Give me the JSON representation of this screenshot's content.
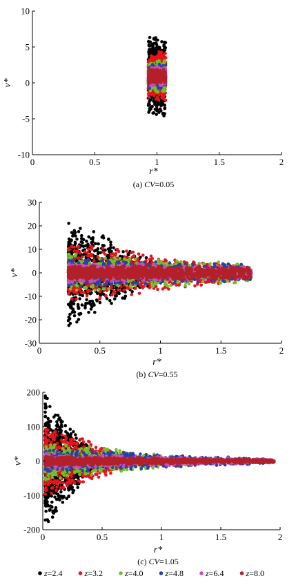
{
  "chart_data": [
    {
      "type": "scatter",
      "caption_prefix": "(a) ",
      "caption_cv": "CV",
      "caption_value": "=0.05",
      "xlabel": "r*",
      "ylabel": "v*",
      "xlim": [
        0,
        2
      ],
      "ylim": [
        -10,
        10
      ],
      "xticks": [
        0,
        0.5,
        1,
        1.5,
        2
      ],
      "xtick_labels": [
        "0",
        "0.5",
        "1",
        "1.5",
        "2"
      ],
      "yticks": [
        -10,
        -5,
        0,
        5,
        10
      ],
      "ytick_labels": [
        "-10",
        "-5",
        "0",
        "5",
        "10"
      ],
      "grid": false,
      "series": [
        {
          "name": "z=2.4",
          "color": "#000000",
          "x_range": [
            0.93,
            1.07
          ],
          "x_range_note": "",
          "spread_start": 5.5,
          "spread_end": 5.5,
          "count": 650
        },
        {
          "name": "z=3.2",
          "color": "#e8141a",
          "x_range": [
            0.93,
            1.07
          ],
          "spread_start": 3.5,
          "spread_end": 3.5,
          "count": 450
        },
        {
          "name": "z=4.0",
          "color": "#6ec12c",
          "x_range": [
            0.93,
            1.07
          ],
          "spread_start": 2.2,
          "spread_end": 2.2,
          "count": 350
        },
        {
          "name": "z=4.8",
          "color": "#2b3fa6",
          "x_range": [
            0.93,
            1.07
          ],
          "spread_start": 1.7,
          "spread_end": 1.7,
          "count": 300
        },
        {
          "name": "z=6.4",
          "color": "#c850b4",
          "x_range": [
            0.93,
            1.07
          ],
          "spread_start": 1.3,
          "spread_end": 1.3,
          "count": 300
        },
        {
          "name": "z=8.0",
          "color": "#b3202a",
          "x_range": [
            0.93,
            1.07
          ],
          "spread_start": 1.0,
          "spread_end": 1.0,
          "count": 350
        }
      ]
    },
    {
      "type": "scatter",
      "caption_prefix": "(b) ",
      "caption_cv": "CV",
      "caption_value": "=0.55",
      "xlabel": "r*",
      "ylabel": "v*",
      "xlim": [
        0,
        2
      ],
      "ylim": [
        -30,
        30
      ],
      "xticks": [
        0,
        0.5,
        1,
        1.5,
        2
      ],
      "xtick_labels": [
        "0",
        "0.5",
        "1",
        "1.5",
        "2"
      ],
      "yticks": [
        -30,
        -20,
        -10,
        0,
        10,
        20,
        30
      ],
      "ytick_labels": [
        "-30",
        "-20",
        "-10",
        "0",
        "10",
        "20",
        "30"
      ],
      "grid": false,
      "series": [
        {
          "name": "z=2.4",
          "color": "#000000",
          "x_range": [
            0.24,
            0.95
          ],
          "spread_start": 23,
          "spread_end": 5,
          "count": 900
        },
        {
          "name": "z=3.2",
          "color": "#e8141a",
          "x_range": [
            0.24,
            1.6
          ],
          "spread_start": 13,
          "spread_end": 4,
          "count": 900
        },
        {
          "name": "z=4.0",
          "color": "#6ec12c",
          "x_range": [
            0.24,
            1.75
          ],
          "spread_start": 8,
          "spread_end": 4,
          "count": 800
        },
        {
          "name": "z=4.8",
          "color": "#2b3fa6",
          "x_range": [
            0.24,
            1.75
          ],
          "spread_start": 6,
          "spread_end": 3.5,
          "count": 800
        },
        {
          "name": "z=6.4",
          "color": "#c850b4",
          "x_range": [
            0.24,
            1.75
          ],
          "spread_start": 4.2,
          "spread_end": 3,
          "count": 800
        },
        {
          "name": "z=8.0",
          "color": "#b3202a",
          "x_range": [
            0.24,
            1.75
          ],
          "spread_start": 3,
          "spread_end": 3,
          "count": 1100
        }
      ]
    },
    {
      "type": "scatter",
      "caption_prefix": "(c) ",
      "caption_cv": "CV",
      "caption_value": "=1.05",
      "xlabel": "r*",
      "ylabel": "v*",
      "xlim": [
        0,
        2
      ],
      "ylim": [
        -200,
        200
      ],
      "xticks": [
        0,
        0.5,
        1,
        1.5,
        2
      ],
      "xtick_labels": [
        "0",
        "0.5",
        "1",
        "1.5",
        "2"
      ],
      "yticks": [
        -200,
        -100,
        0,
        100,
        200
      ],
      "ytick_labels": [
        "-200",
        "-100",
        "0",
        "100",
        "200"
      ],
      "grid": false,
      "series": [
        {
          "name": "z=2.4",
          "color": "#000000",
          "x_range": [
            0.02,
            0.45
          ],
          "spread_start": 190,
          "spread_end": 15,
          "count": 1100
        },
        {
          "name": "z=3.2",
          "color": "#e8141a",
          "x_range": [
            0.02,
            0.8
          ],
          "spread_start": 100,
          "spread_end": 12,
          "count": 900
        },
        {
          "name": "z=4.0",
          "color": "#6ec12c",
          "x_range": [
            0.02,
            1.3
          ],
          "spread_start": 55,
          "spread_end": 9,
          "count": 800
        },
        {
          "name": "z=4.8",
          "color": "#2b3fa6",
          "x_range": [
            0.02,
            1.9
          ],
          "spread_start": 35,
          "spread_end": 7,
          "count": 800
        },
        {
          "name": "z=6.4",
          "color": "#c850b4",
          "x_range": [
            0.02,
            1.95
          ],
          "spread_start": 22,
          "spread_end": 6,
          "count": 800
        },
        {
          "name": "z=8.0",
          "color": "#b3202a",
          "x_range": [
            0.02,
            1.95
          ],
          "spread_start": 14,
          "spread_end": 5,
          "count": 1100
        }
      ]
    }
  ],
  "legend": {
    "placement": "bottom",
    "entries": [
      {
        "var": "z",
        "value": "=2.4",
        "color": "#000000"
      },
      {
        "var": "z",
        "value": "=3.2",
        "color": "#e8141a"
      },
      {
        "var": "z",
        "value": "=4.0",
        "color": "#6ec12c"
      },
      {
        "var": "z",
        "value": "=4.8",
        "color": "#2b3fa6"
      },
      {
        "var": "z",
        "value": "=6.4",
        "color": "#c850b4"
      },
      {
        "var": "z",
        "value": "=8.0",
        "color": "#b3202a"
      }
    ]
  }
}
